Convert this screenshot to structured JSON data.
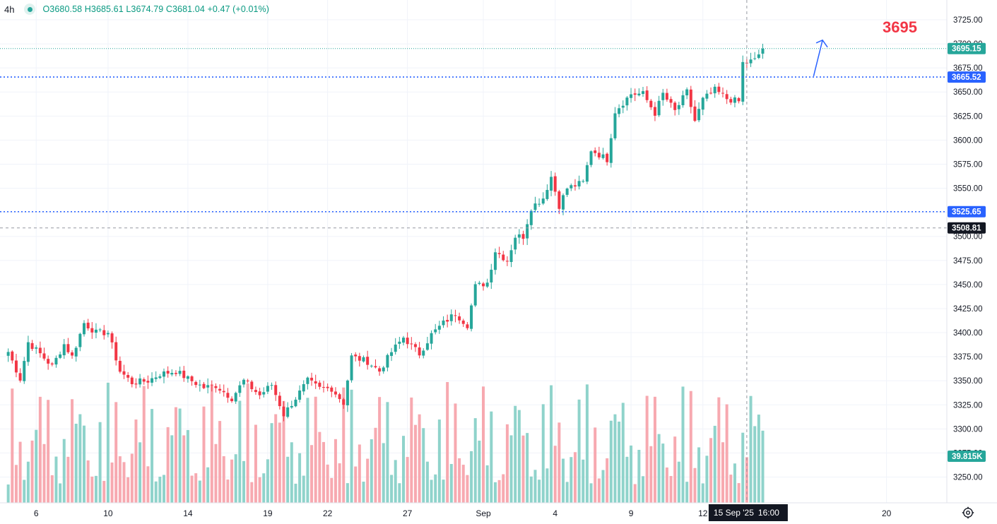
{
  "legend": {
    "timeframe": "4h",
    "open": "O3680.58",
    "high": "H3685.61",
    "low": "L3674.79",
    "close": "C3681.04",
    "change": "+0.47 (+0.01%)"
  },
  "annotation_text": "3695",
  "icons": {
    "status": "green-dot-icon",
    "settings": "gear-icon",
    "arrow": "up-arrow-icon"
  },
  "colors": {
    "up": "#26a69a",
    "down": "#f23645",
    "line_blue": "#2962ff",
    "vol_up": "#8fd3cb",
    "vol_down": "#f7a9b0",
    "target": "#f23645"
  },
  "chart_data": {
    "type": "candlestick",
    "timeframe": "4h",
    "ylim": [
      3230,
      3735
    ],
    "y_ticks": [
      "3725.00",
      "3700.00",
      "3675.00",
      "3650.00",
      "3625.00",
      "3600.00",
      "3575.00",
      "3550.00",
      "3525.00",
      "3500.00",
      "3475.00",
      "3450.00",
      "3425.00",
      "3400.00",
      "3375.00",
      "3350.00",
      "3325.00",
      "3300.00",
      "3275.00",
      "3250.00"
    ],
    "x_ticks": [
      "6",
      "10",
      "14",
      "19",
      "22",
      "27",
      "Sep",
      "4",
      "9",
      "12",
      "20"
    ],
    "x_range_index": [
      -1,
      240
    ],
    "x_tick_index": [
      7,
      25,
      45,
      65,
      80,
      100,
      119,
      137,
      156,
      174,
      220
    ],
    "crosshair": {
      "index": 185,
      "time_label": "15 Sep '25",
      "time": "16:00",
      "price_label": "3508.81",
      "price": 3508.81
    },
    "horizontal_lines": [
      {
        "price": 3665.52,
        "label": "3665.52",
        "style": "dotted",
        "color": "#2962ff"
      },
      {
        "price": 3525.65,
        "label": "3525.65",
        "style": "dotted",
        "color": "#2962ff"
      }
    ],
    "last_price": {
      "price": 3695.15,
      "label": "3695.15"
    },
    "volume_label": "39.815K",
    "target_annotation": {
      "text": "3695",
      "arrow_from": [
        192,
        3665
      ],
      "arrow_to": [
        193,
        3698
      ]
    },
    "anchors": [
      [
        0,
        3380
      ],
      [
        3,
        3352
      ],
      [
        5,
        3390
      ],
      [
        8,
        3378
      ],
      [
        11,
        3365
      ],
      [
        14,
        3388
      ],
      [
        16,
        3375
      ],
      [
        19,
        3410
      ],
      [
        22,
        3400
      ],
      [
        25,
        3400
      ],
      [
        28,
        3360
      ],
      [
        31,
        3348
      ],
      [
        35,
        3350
      ],
      [
        38,
        3357
      ],
      [
        42,
        3360
      ],
      [
        45,
        3352
      ],
      [
        49,
        3343
      ],
      [
        52,
        3345
      ],
      [
        56,
        3332
      ],
      [
        59,
        3350
      ],
      [
        63,
        3335
      ],
      [
        66,
        3346
      ],
      [
        69,
        3315
      ],
      [
        72,
        3332
      ],
      [
        75,
        3350
      ],
      [
        78,
        3342
      ],
      [
        81,
        3342
      ],
      [
        84,
        3327
      ],
      [
        86,
        3375
      ],
      [
        90,
        3370
      ],
      [
        93,
        3360
      ],
      [
        96,
        3380
      ],
      [
        99,
        3395
      ],
      [
        103,
        3378
      ],
      [
        106,
        3398
      ],
      [
        109,
        3410
      ],
      [
        112,
        3420
      ],
      [
        115,
        3408
      ],
      [
        117,
        3448
      ],
      [
        120,
        3452
      ],
      [
        122,
        3485
      ],
      [
        125,
        3475
      ],
      [
        127,
        3500
      ],
      [
        129,
        3500
      ],
      [
        131,
        3530
      ],
      [
        134,
        3540
      ],
      [
        136,
        3562
      ],
      [
        138,
        3532
      ],
      [
        140,
        3550
      ],
      [
        144,
        3556
      ],
      [
        146,
        3590
      ],
      [
        150,
        3580
      ],
      [
        152,
        3630
      ],
      [
        156,
        3648
      ],
      [
        159,
        3648
      ],
      [
        162,
        3628
      ],
      [
        164,
        3648
      ],
      [
        167,
        3630
      ],
      [
        170,
        3650
      ],
      [
        172,
        3620
      ],
      [
        174,
        3642
      ],
      [
        177,
        3652
      ],
      [
        180,
        3643
      ],
      [
        183,
        3640
      ],
      [
        184,
        3680
      ],
      [
        187,
        3683
      ],
      [
        189,
        3695
      ]
    ],
    "volume_max": 3360
  }
}
